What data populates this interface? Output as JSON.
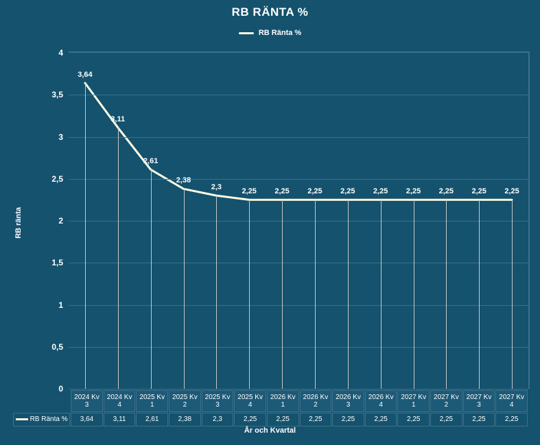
{
  "title": "RB RÄNTA %",
  "legend_label": "RB Ränta %",
  "y_axis_title": "RB ränta",
  "x_axis_title": "År och Kvartal",
  "row_header": "RB Ränta %",
  "line_color": "#fdfce3",
  "line_width": 3,
  "background_color": "#14526e",
  "grid_color": "#3e7089",
  "dropline_color": "#c9c9c9",
  "text_color": "#ffffff",
  "ylim": [
    0,
    4
  ],
  "ytick_step": 0.5,
  "yticks": [
    "0",
    "0,5",
    "1",
    "1,5",
    "2",
    "2,5",
    "3",
    "3,5",
    "4"
  ],
  "categories": [
    "2024 Kv 3",
    "2024 Kv 4",
    "2025 Kv 1",
    "2025 Kv 2",
    "2025 Kv 3",
    "2025 Kv 4",
    "2026 Kv 1",
    "2026 Kv 2",
    "2026 Kv 3",
    "2026 Kv 4",
    "2027 Kv 1",
    "2027 Kv 2",
    "2027 Kv 3",
    "2027 Kv 4"
  ],
  "values": [
    3.64,
    3.11,
    2.61,
    2.38,
    2.3,
    2.25,
    2.25,
    2.25,
    2.25,
    2.25,
    2.25,
    2.25,
    2.25,
    2.25
  ],
  "value_labels": [
    "3,64",
    "3,11",
    "2,61",
    "2,38",
    "2,3",
    "2,25",
    "2,25",
    "2,25",
    "2,25",
    "2,25",
    "2,25",
    "2,25",
    "2,25",
    "2,25"
  ]
}
